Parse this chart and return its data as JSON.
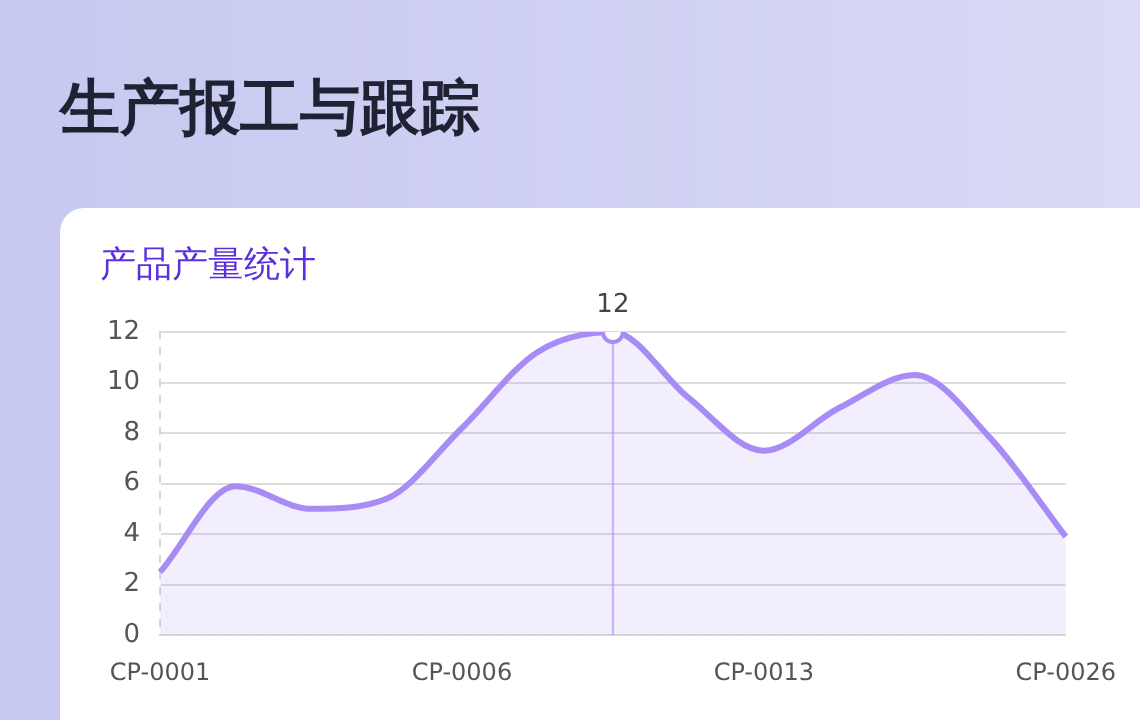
{
  "chart_data": {
    "type": "area",
    "title": "生产报工与跟踪",
    "subtitle": "产品产量统计",
    "categories": [
      "CP-0001",
      null,
      null,
      null,
      "CP-0006",
      null,
      null,
      null,
      "CP-0013",
      null,
      null,
      null,
      "CP-0026"
    ],
    "series": [
      {
        "color": "#a98bf5",
        "values": [
          2.5,
          5.9,
          5.0,
          5.4,
          8.2,
          11.2,
          12,
          9.4,
          7.3,
          9.0,
          10.3,
          7.8,
          3.9
        ],
        "value_labels": [
          null,
          null,
          null,
          null,
          null,
          null,
          "12",
          null,
          null,
          null,
          null,
          null,
          null
        ]
      }
    ],
    "ylim": [
      0,
      12
    ],
    "yticks": [
      0,
      2,
      4,
      6,
      8,
      10,
      12
    ],
    "grid": "y",
    "legend": false
  }
}
